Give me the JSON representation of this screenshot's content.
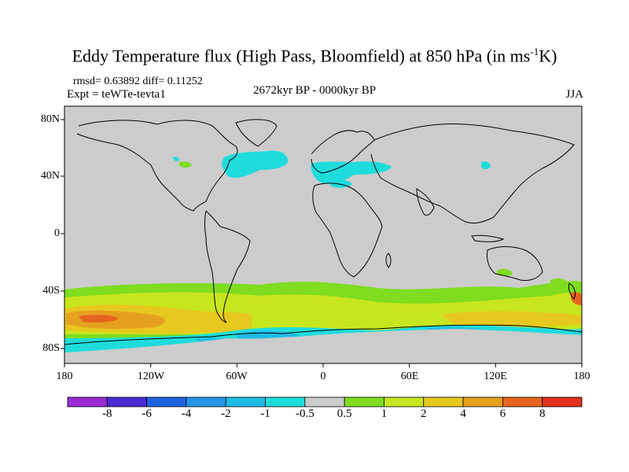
{
  "title": {
    "main": "Eddy Temperature flux (High Pass, Bloomfield) at 850 hPa (in ms",
    "sup": "-1",
    "end": "K)"
  },
  "stats": "rmsd= 0.63892 diff= 0.11252",
  "experiment": "Expt = teWTe-tevta1",
  "period": "2672kyr BP - 0000kyr BP",
  "season": "JJA",
  "y_labels": [
    "80N",
    "40N",
    "0",
    "40S",
    "80S"
  ],
  "x_labels": [
    "180",
    "120W",
    "60W",
    "0",
    "60E",
    "120E",
    "180"
  ],
  "colorbar": {
    "labels": [
      "-8",
      "-6",
      "-4",
      "-2",
      "-1",
      "-0.5",
      "0.5",
      "1",
      "2",
      "4",
      "6",
      "8"
    ],
    "colors": [
      "#9a2bd6",
      "#4b2bd6",
      "#1f62e0",
      "#2596e6",
      "#1fbde6",
      "#1fdcdc",
      "#cccccc",
      "#7fdc1f",
      "#c8e61f",
      "#e6c81f",
      "#e6a01f",
      "#e6641f",
      "#e0321f"
    ]
  },
  "colors": {
    "land_ocean_neutral": "#cccccc",
    "frame": "#000000"
  }
}
